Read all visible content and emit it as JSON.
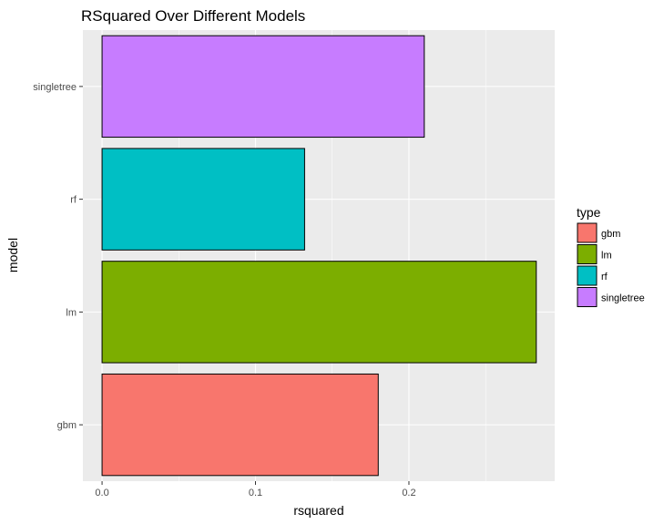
{
  "chart_data": {
    "type": "bar",
    "orientation": "horizontal",
    "title": "RSquared Over Different Models",
    "xlabel": "rsquared",
    "ylabel": "model",
    "categories": [
      "gbm",
      "lm",
      "rf",
      "singletree"
    ],
    "values": [
      0.18,
      0.283,
      0.132,
      0.21
    ],
    "colors": [
      "#F8766D",
      "#7CAE00",
      "#00BFC4",
      "#C77CFF"
    ],
    "xlim": [
      -0.0125,
      0.295
    ],
    "xticks": [
      0.0,
      0.1,
      0.2
    ],
    "xtick_labels": [
      "0.0",
      "0.1",
      "0.2"
    ],
    "grid": true,
    "panel_background": "#EBEBEB",
    "legend": {
      "title": "type",
      "position": "right",
      "entries": [
        "gbm",
        "lm",
        "rf",
        "singletree"
      ]
    }
  }
}
